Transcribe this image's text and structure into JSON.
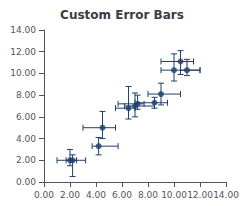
{
  "chart_data": {
    "type": "scatter",
    "title": "Custom Error Bars",
    "x": [
      2.0,
      2.2,
      4.2,
      4.5,
      6.5,
      7.0,
      7.2,
      8.5,
      9.0,
      10.0,
      10.5,
      11.0
    ],
    "values": [
      2.0,
      2.0,
      3.3,
      5.0,
      6.8,
      7.0,
      7.2,
      7.3,
      8.1,
      10.3,
      11.1,
      10.3
    ],
    "xerr_minus": [
      1.0,
      0.5,
      0.5,
      1.5,
      1.0,
      0.8,
      1.5,
      1.5,
      1.0,
      1.0,
      1.5,
      0.5
    ],
    "xerr_plus": [
      0.5,
      1.0,
      1.5,
      1.0,
      0.5,
      1.5,
      0.5,
      1.0,
      1.5,
      2.0,
      1.0,
      1.0
    ],
    "yerr_minus": [
      0.5,
      1.5,
      0.8,
      1.0,
      1.0,
      1.0,
      0.5,
      0.5,
      1.0,
      1.0,
      1.2,
      0.5
    ],
    "yerr_plus": [
      1.0,
      0.5,
      0.8,
      1.5,
      2.0,
      1.2,
      0.8,
      0.5,
      1.0,
      1.5,
      1.0,
      1.0
    ],
    "color": "#1F3F6E",
    "xlim": [
      0,
      14
    ],
    "ylim": [
      0,
      14
    ],
    "xticks": [
      {
        "value": 0,
        "label": "0.00"
      },
      {
        "value": 2,
        "label": "2.00"
      },
      {
        "value": 4,
        "label": "4.00"
      },
      {
        "value": 6,
        "label": "6.00"
      },
      {
        "value": 8,
        "label": "8.00"
      },
      {
        "value": 10,
        "label": "10.00"
      },
      {
        "value": 12,
        "label": "12.00"
      },
      {
        "value": 14,
        "label": "14.00"
      }
    ],
    "yticks": [
      {
        "value": 0,
        "label": "0.00"
      },
      {
        "value": 2,
        "label": "2.00"
      },
      {
        "value": 4,
        "label": "4.00"
      },
      {
        "value": 6,
        "label": "6.00"
      },
      {
        "value": 8,
        "label": "8.00"
      },
      {
        "value": 10,
        "label": "10.00"
      },
      {
        "value": 12,
        "label": "12.00"
      },
      {
        "value": 14,
        "label": "14.00"
      }
    ],
    "grid": false
  }
}
